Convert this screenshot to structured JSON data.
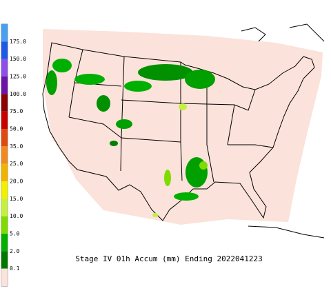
{
  "title": "Stage IV 01h Accum (mm) Ending 2022041223",
  "legend": {
    "labels": [
      "175.0",
      "150.0",
      "125.0",
      "100.0",
      "75.0",
      "50.0",
      "35.0",
      "25.0",
      "20.0",
      "15.0",
      "10.0",
      "5.0",
      "2.0",
      "0.1"
    ],
    "colors": [
      "#4aa0f0",
      "#1e5ae6",
      "#8a50e8",
      "#6a14a8",
      "#8b0000",
      "#c80000",
      "#e04a10",
      "#f08a20",
      "#f0b400",
      "#f0f000",
      "#c4f040",
      "#80dc00",
      "#00b000",
      "#007800",
      "#fbe2da"
    ]
  }
}
